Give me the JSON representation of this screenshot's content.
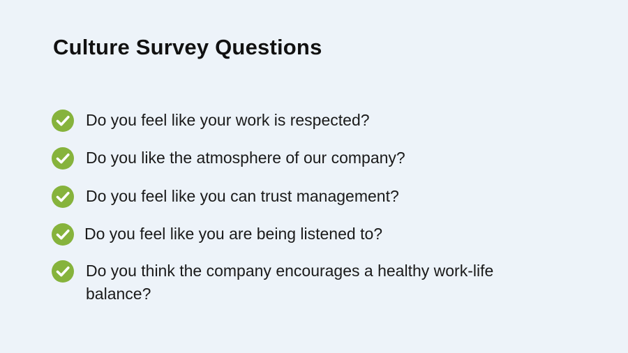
{
  "slide": {
    "title": "Culture Survey Questions",
    "check_icon": "check-circle-icon",
    "accent_color": "#86b33c",
    "questions": [
      "Do you feel like your work is respected?",
      "Do you like the atmosphere of our company?",
      "Do you feel like you can trust management?",
      "Do you feel like you are being listened to?",
      "Do you think the company encourages a healthy work-life balance?"
    ]
  }
}
